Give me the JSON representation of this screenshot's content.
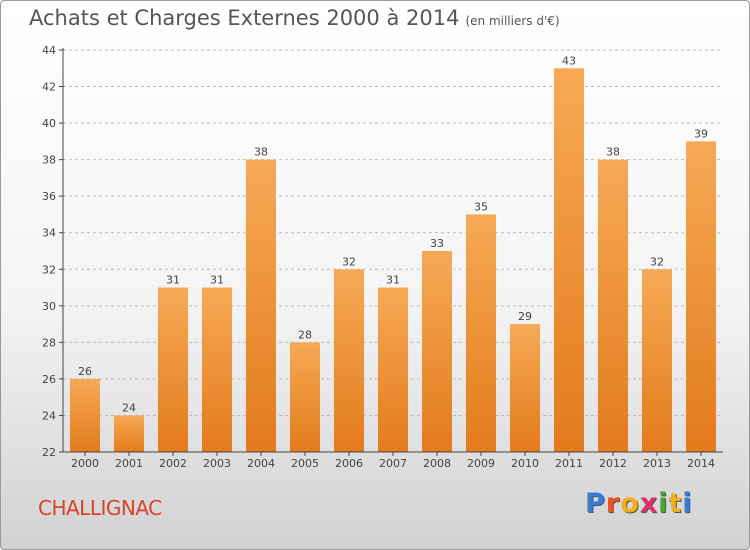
{
  "header": {
    "title": "Achats et Charges Externes 2000 à 2014",
    "unit": "(en milliers d'€)"
  },
  "commune": "CHALLIGNAC",
  "logo": {
    "text": "Proxiti",
    "letter_colors": [
      "#3a7bd5",
      "#e8542b",
      "#f2b01e",
      "#e0306c",
      "#4aa03a",
      "#f2b01e",
      "#3a7bd5"
    ]
  },
  "colors": {
    "bar_light": "#f6a955",
    "bar_dark": "#e37b1d",
    "axis": "#444444",
    "grid": "#bbbbbb",
    "text": "#444444"
  },
  "chart_data": {
    "type": "bar",
    "title": "Achats et Charges Externes 2000 à 2014",
    "subtitle": "(en milliers d'€)",
    "categories": [
      "2000",
      "2001",
      "2002",
      "2003",
      "2004",
      "2005",
      "2006",
      "2007",
      "2008",
      "2009",
      "2010",
      "2011",
      "2012",
      "2013",
      "2014"
    ],
    "values": [
      26,
      24,
      31,
      31,
      38,
      28,
      32,
      31,
      33,
      35,
      29,
      43,
      38,
      32,
      39
    ],
    "ylim": [
      22,
      44
    ],
    "yticks": [
      22,
      24,
      26,
      28,
      30,
      32,
      34,
      36,
      38,
      40,
      42,
      44
    ],
    "xlabel": "",
    "ylabel": "",
    "grid": true
  }
}
